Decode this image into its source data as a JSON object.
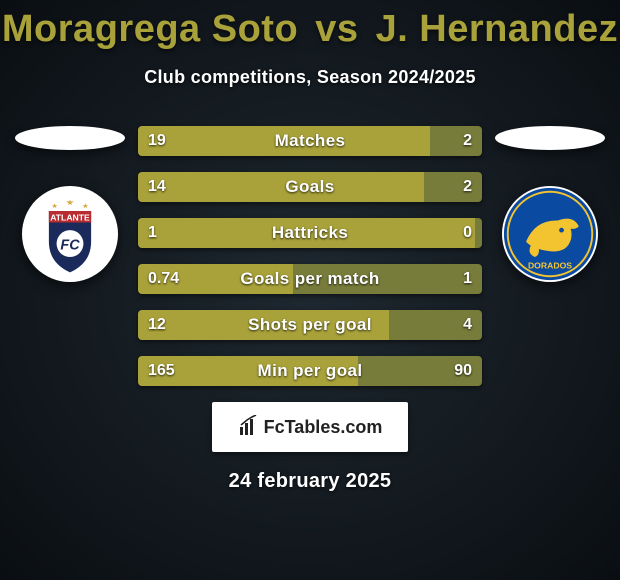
{
  "title_left": "Moragrega Soto",
  "title_vs": "vs",
  "title_right": "J. Hernandez",
  "subtitle": "Club competitions, Season 2024/2025",
  "colors": {
    "left_bar": "#a9a23a",
    "right_bar": "#777c3a",
    "background_inner": "#1e2830",
    "background_outer": "#0a0e12",
    "text_white": "#ffffff",
    "title_color": "#a9a23a"
  },
  "rows": [
    {
      "label": "Matches",
      "left": "19",
      "right": "2",
      "left_pct": 85,
      "right_pct": 15
    },
    {
      "label": "Goals",
      "left": "14",
      "right": "2",
      "left_pct": 83,
      "right_pct": 17
    },
    {
      "label": "Hattricks",
      "left": "1",
      "right": "0",
      "left_pct": 98,
      "right_pct": 2
    },
    {
      "label": "Goals per match",
      "left": "0.74",
      "right": "1",
      "left_pct": 45,
      "right_pct": 55
    },
    {
      "label": "Shots per goal",
      "left": "12",
      "right": "4",
      "left_pct": 73,
      "right_pct": 27
    },
    {
      "label": "Min per goal",
      "left": "165",
      "right": "90",
      "left_pct": 64,
      "right_pct": 36
    }
  ],
  "brand": "FcTables.com",
  "date": "24 february 2025",
  "team_left": "Atlante",
  "team_right": "Dorados"
}
